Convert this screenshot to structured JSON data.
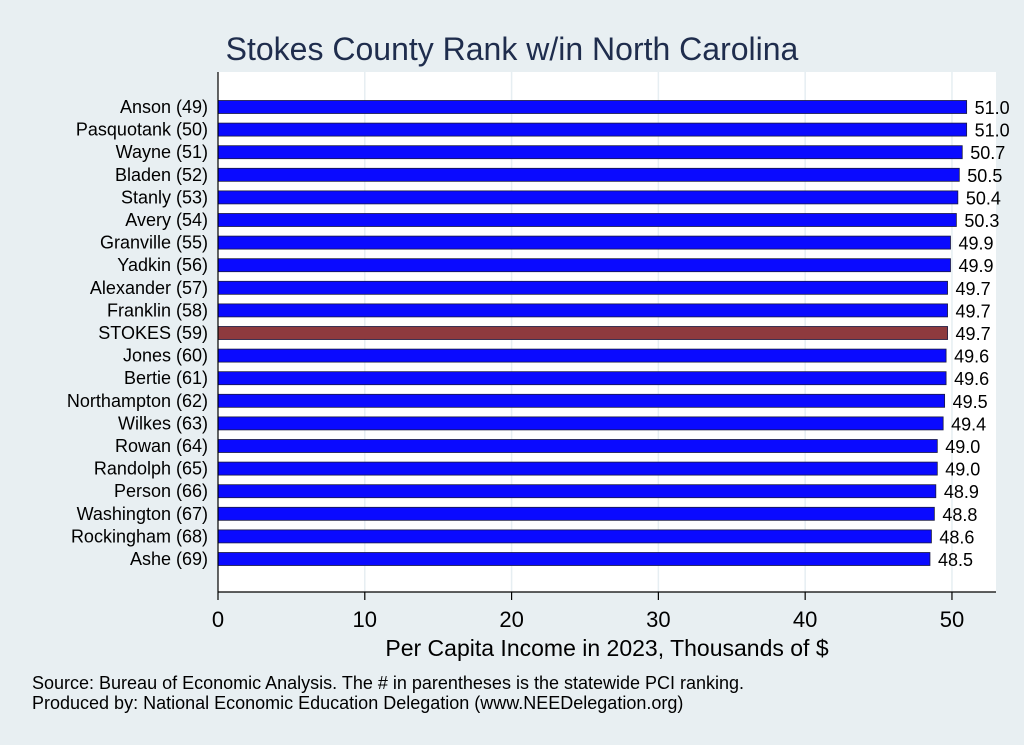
{
  "chart_data": {
    "type": "bar",
    "orientation": "horizontal",
    "title": "Stokes County Rank w/in North Carolina",
    "xlabel": "Per Capita Income in 2023, Thousands of $",
    "ylabel": "",
    "xlim": [
      0,
      53
    ],
    "xticks": [
      0,
      10,
      20,
      30,
      40,
      50
    ],
    "grid": true,
    "categories": [
      "Anson (49)",
      "Pasquotank (50)",
      "Wayne (51)",
      "Bladen (52)",
      "Stanly (53)",
      "Avery (54)",
      "Granville (55)",
      "Yadkin (56)",
      "Alexander (57)",
      "Franklin (58)",
      "STOKES (59)",
      "Jones (60)",
      "Bertie (61)",
      "Northampton (62)",
      "Wilkes (63)",
      "Rowan (64)",
      "Randolph (65)",
      "Person (66)",
      "Washington (67)",
      "Rockingham (68)",
      "Ashe (69)"
    ],
    "values": [
      51.0,
      51.0,
      50.7,
      50.5,
      50.4,
      50.3,
      49.9,
      49.9,
      49.7,
      49.7,
      49.7,
      49.6,
      49.6,
      49.5,
      49.4,
      49.0,
      49.0,
      48.9,
      48.8,
      48.6,
      48.5
    ],
    "value_labels": [
      "51.0",
      "51.0",
      "50.7",
      "50.5",
      "50.4",
      "50.3",
      "49.9",
      "49.9",
      "49.7",
      "49.7",
      "49.7",
      "49.6",
      "49.6",
      "49.5",
      "49.4",
      "49.0",
      "49.0",
      "48.9",
      "48.8",
      "48.6",
      "48.5"
    ],
    "highlight_category": "STOKES (59)",
    "colors": {
      "bar": "#0a0aff",
      "highlight": "#8e3a3e",
      "background": "#e8eff2",
      "plot_background": "#ffffff",
      "grid": "#e6eef2",
      "title": "#1f2d4d"
    }
  },
  "footer": {
    "source_note": "Source: Bureau of Economic Analysis. The # in parentheses is the statewide PCI ranking.",
    "produced_by": "Produced by: National Economic Education Delegation (www.NEEDelegation.org)"
  }
}
